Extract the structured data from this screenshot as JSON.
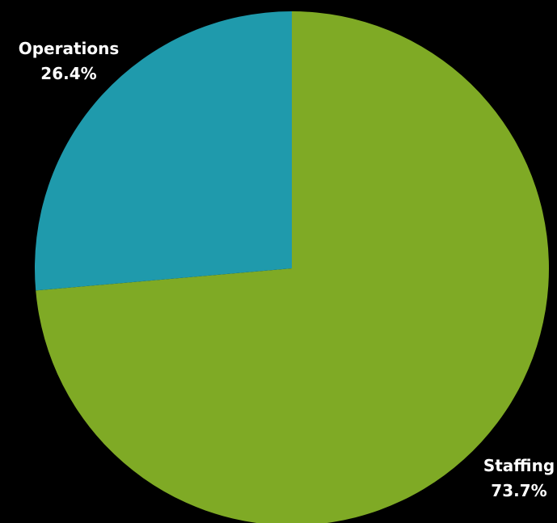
{
  "chart_data": {
    "type": "pie",
    "start_angle_deg": 0,
    "direction": "clockwise",
    "slices": [
      {
        "name": "Staffing",
        "value": 73.7,
        "label": "73.7%",
        "color": "#7faa25"
      },
      {
        "name": "Operations",
        "value": 26.4,
        "label": "26.4%",
        "color": "#1f9aac"
      }
    ]
  },
  "background_color": "#000000",
  "label_color": "#ffffff"
}
